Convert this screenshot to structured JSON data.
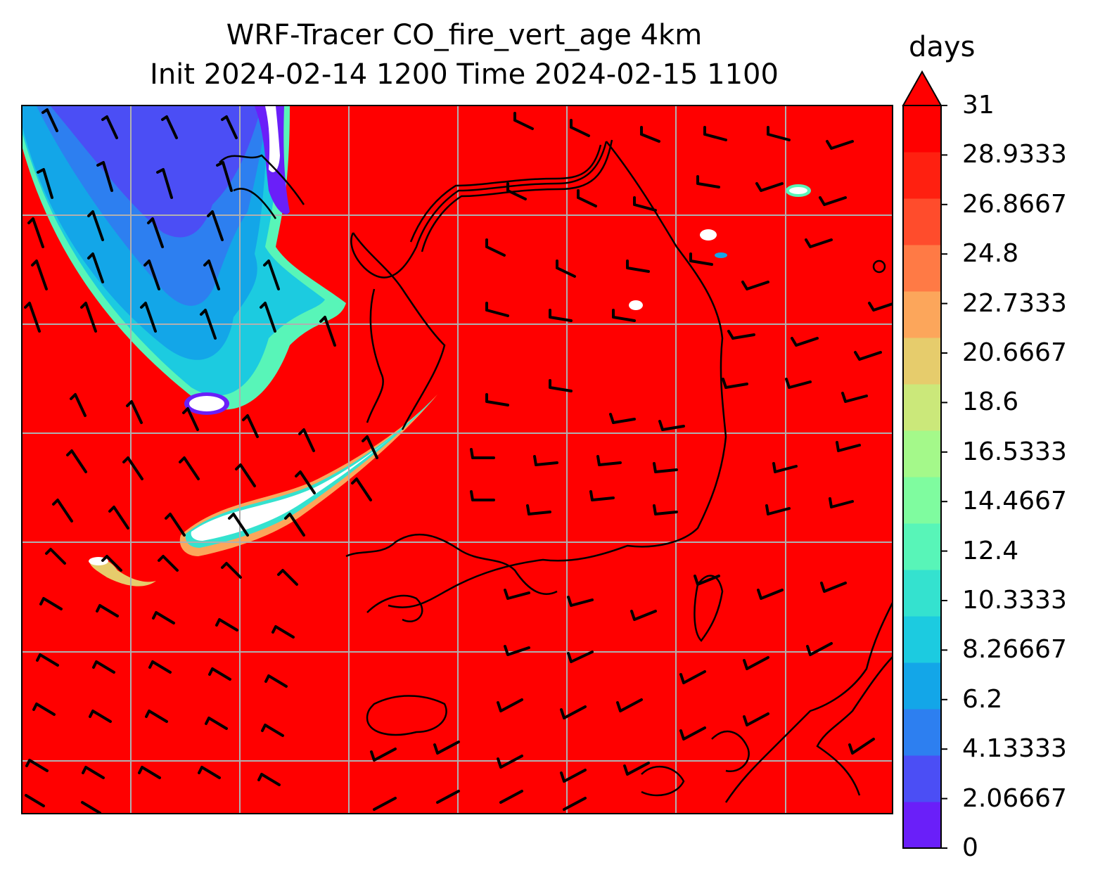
{
  "title_line1": "WRF-Tracer CO_fire_vert_age 4km",
  "title_line2": "Init 2024-02-14 1200 Time 2024-02-15 1100",
  "colorbar": {
    "unit": "days",
    "min": 0,
    "max": 31,
    "extend": "max",
    "tick_labels": [
      "0",
      "2.06667",
      "4.13333",
      "6.2",
      "8.26667",
      "10.3333",
      "12.4",
      "14.4667",
      "16.5333",
      "18.6",
      "20.6667",
      "22.7333",
      "24.8",
      "26.8667",
      "28.9333",
      "31"
    ],
    "colors": [
      "#6a1ff9",
      "#4b4ef5",
      "#2d7ff0",
      "#13a6e8",
      "#1ccbe0",
      "#34e2cf",
      "#58f5b8",
      "#7ffc9f",
      "#a4f98a",
      "#cbe87a",
      "#e6cc6c",
      "#fca65b",
      "#ff7a45",
      "#ff4c2c",
      "#ff2010",
      "#ff0000"
    ]
  },
  "map": {
    "background_field": "#ff0000",
    "grid_color": "#b0b0b0",
    "coast_color": "#000000"
  }
}
